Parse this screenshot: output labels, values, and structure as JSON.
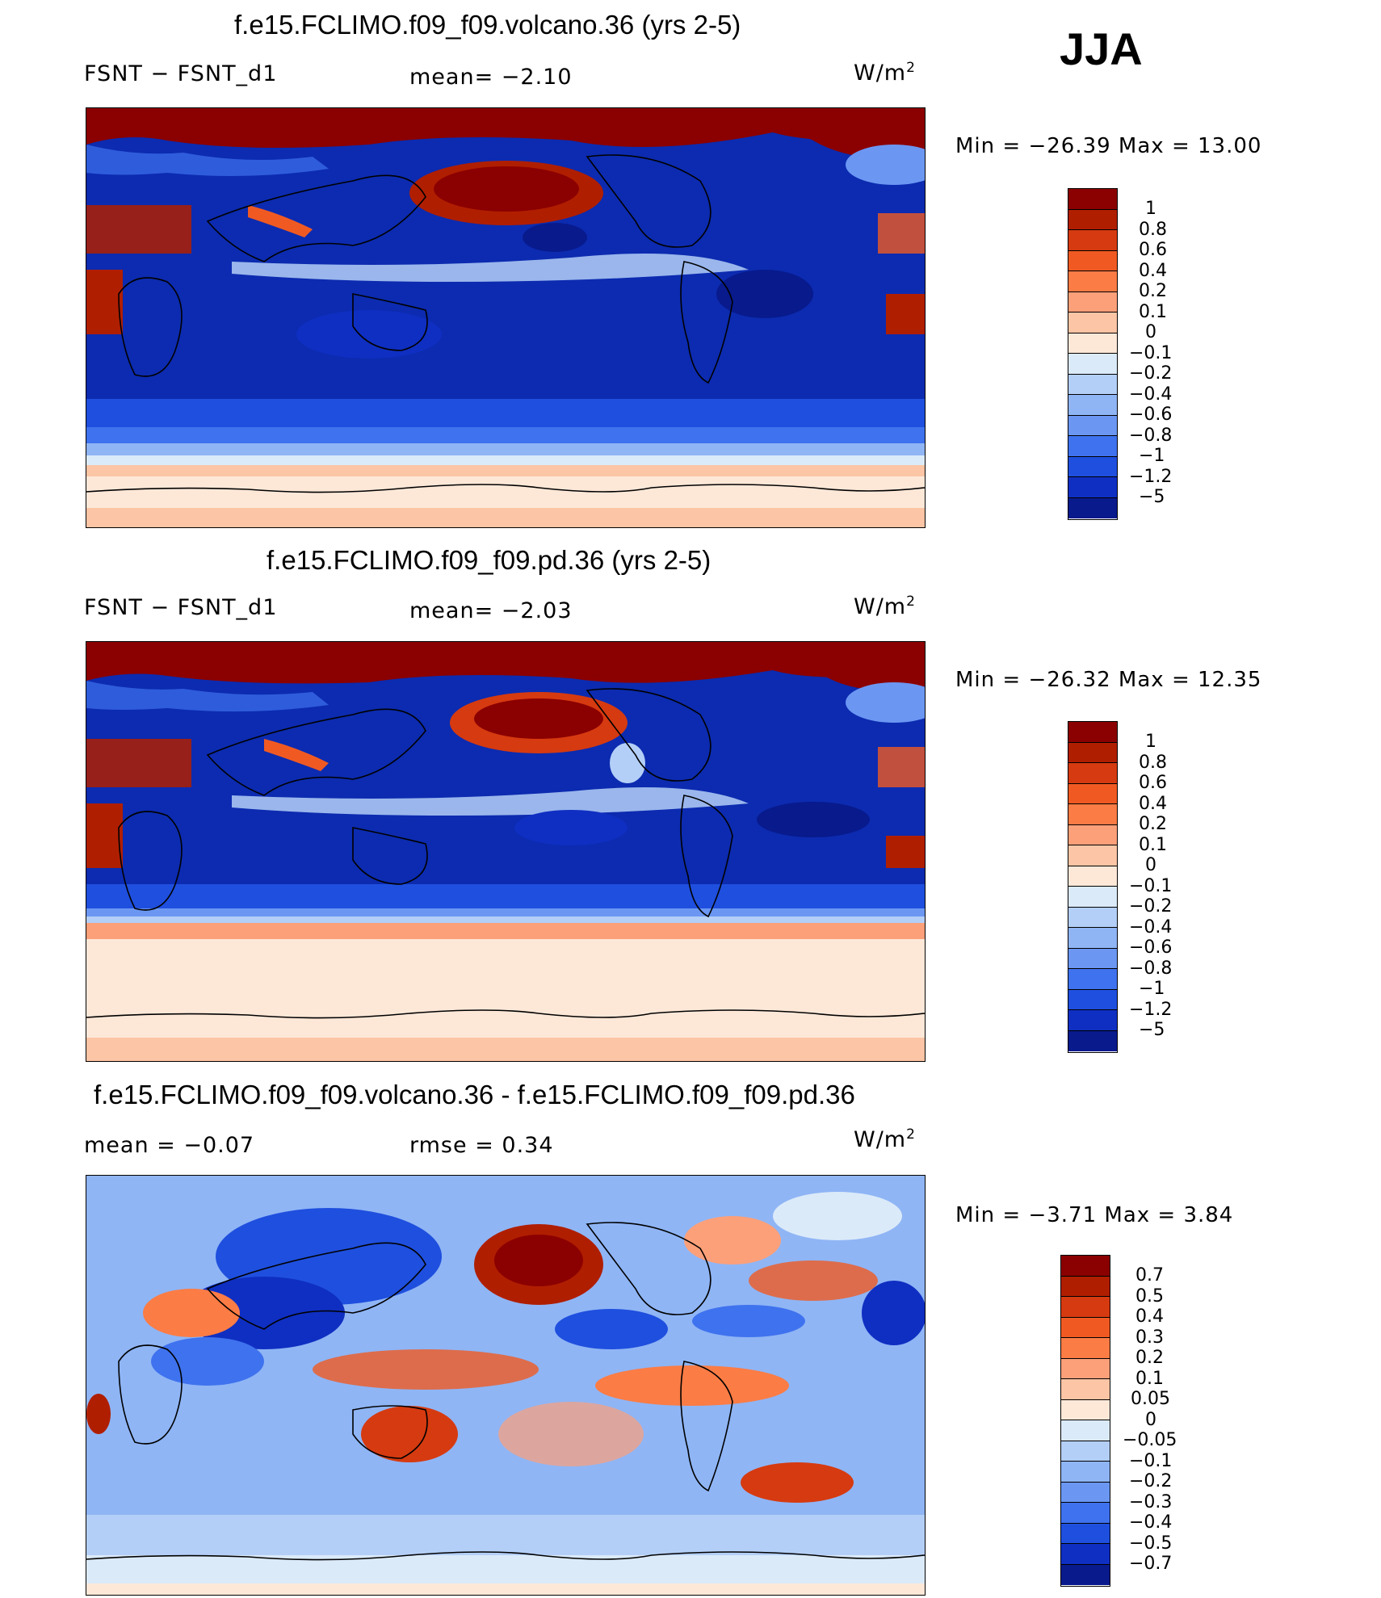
{
  "season": "JJA",
  "panels": [
    {
      "title": "f.e15.FCLIMO.f09_f09.volcano.36 (yrs 2-5)",
      "left_label": "FSNT  −  FSNT_d1",
      "mid_label": "mean=   −2.10",
      "units": "W/m",
      "units_sup": "2",
      "minmax": "Min  =  −26.39  Max  =    13.00",
      "colorbar": {
        "labels": [
          "1",
          "0.8",
          "0.6",
          "0.4",
          "0.2",
          "0.1",
          "0",
          "−0.1",
          "−0.2",
          "−0.4",
          "−0.6",
          "−0.8",
          "−1",
          "−1.2",
          "−5"
        ],
        "colors": [
          "#8b0000",
          "#b01e00",
          "#d63a10",
          "#f05a22",
          "#fb7c45",
          "#fca07a",
          "#fcc5a5",
          "#fde8d8",
          "#dbeaf9",
          "#b4cff7",
          "#8fb5f5",
          "#6b97f3",
          "#3f72ee",
          "#1f4fde",
          "#0f2fc2",
          "#081a8c"
        ]
      }
    },
    {
      "title": "f.e15.FCLIMO.f09_f09.pd.36 (yrs 2-5)",
      "left_label": "FSNT  −  FSNT_d1",
      "mid_label": "mean=   −2.03",
      "units": "W/m",
      "units_sup": "2",
      "minmax": "Min  =  −26.32  Max  =    12.35",
      "colorbar": {
        "labels": [
          "1",
          "0.8",
          "0.6",
          "0.4",
          "0.2",
          "0.1",
          "0",
          "−0.1",
          "−0.2",
          "−0.4",
          "−0.6",
          "−0.8",
          "−1",
          "−1.2",
          "−5"
        ],
        "colors": [
          "#8b0000",
          "#b01e00",
          "#d63a10",
          "#f05a22",
          "#fb7c45",
          "#fca07a",
          "#fcc5a5",
          "#fde8d8",
          "#dbeaf9",
          "#b4cff7",
          "#8fb5f5",
          "#6b97f3",
          "#3f72ee",
          "#1f4fde",
          "#0f2fc2",
          "#081a8c"
        ]
      }
    },
    {
      "title": "f.e15.FCLIMO.f09_f09.volcano.36 - f.e15.FCLIMO.f09_f09.pd.36",
      "left_label": "mean  =    −0.07",
      "mid_label": "rmse  =     0.34",
      "units": "W/m",
      "units_sup": "2",
      "minmax": "Min  =     −3.71  Max  =      3.84",
      "colorbar": {
        "labels": [
          "0.7",
          "0.5",
          "0.4",
          "0.3",
          "0.2",
          "0.1",
          "0.05",
          "0",
          "−0.05",
          "−0.1",
          "−0.2",
          "−0.3",
          "−0.4",
          "−0.5",
          "−0.7"
        ],
        "colors": [
          "#8b0000",
          "#b01e00",
          "#d63a10",
          "#f05a22",
          "#fb7c45",
          "#fca07a",
          "#fcc5a5",
          "#fde8d8",
          "#dbeaf9",
          "#b4cff7",
          "#8fb5f5",
          "#6b97f3",
          "#3f72ee",
          "#1f4fde",
          "#0f2fc2",
          "#081a8c"
        ]
      }
    }
  ]
}
